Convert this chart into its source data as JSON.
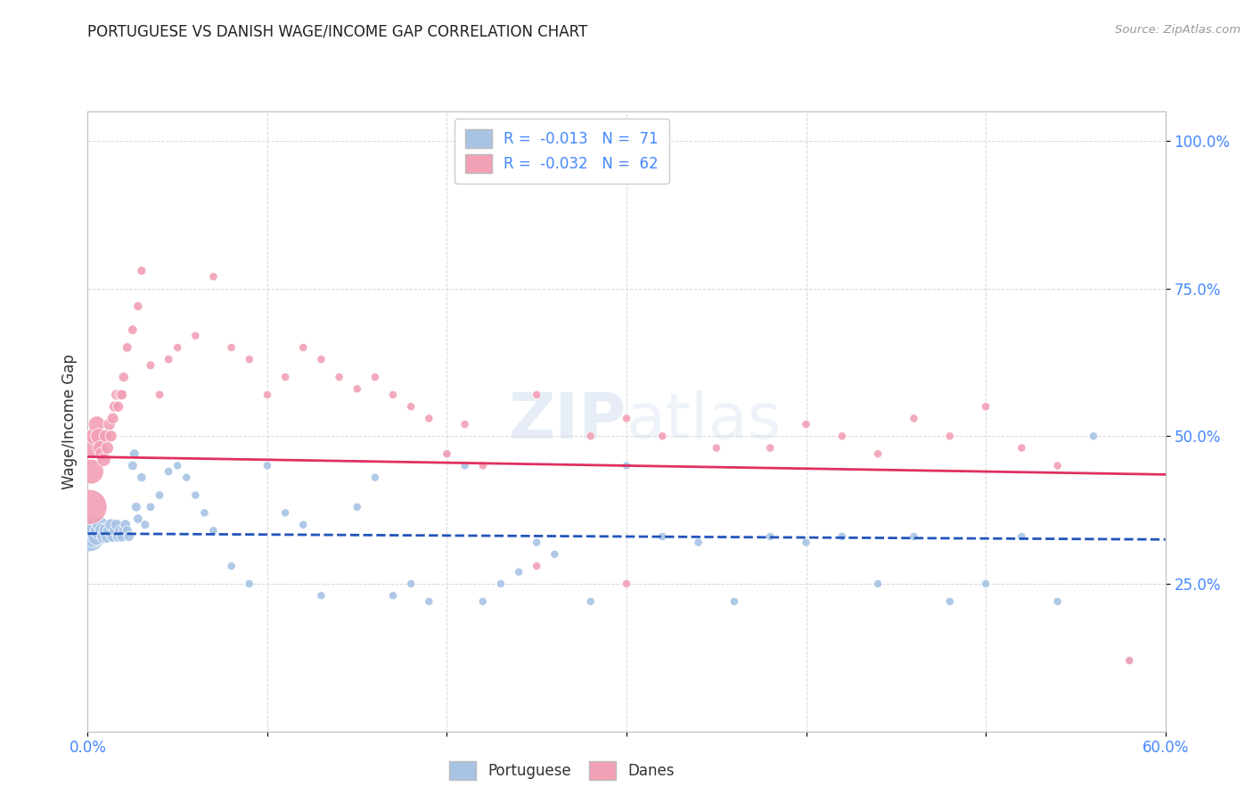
{
  "title": "PORTUGUESE VS DANISH WAGE/INCOME GAP CORRELATION CHART",
  "source": "Source: ZipAtlas.com",
  "ylabel": "Wage/Income Gap",
  "yticks": [
    "100.0%",
    "75.0%",
    "50.0%",
    "25.0%"
  ],
  "ytick_vals": [
    1.0,
    0.75,
    0.5,
    0.25
  ],
  "xlim": [
    0.0,
    0.6
  ],
  "ylim": [
    0.0,
    1.05
  ],
  "watermark": "ZIPatlas",
  "blue_color": "#A8C4E5",
  "pink_color": "#F2A0B5",
  "blue_line_color": "#2255BB",
  "pink_line_color": "#E03060",
  "tick_color": "#4488FF",
  "label_color": "#333333",
  "background": "#FFFFFF",
  "grid_color": "#CCCCCC",
  "portuguese_x": [
    0.001,
    0.002,
    0.003,
    0.004,
    0.005,
    0.006,
    0.007,
    0.008,
    0.009,
    0.01,
    0.011,
    0.012,
    0.013,
    0.014,
    0.015,
    0.016,
    0.017,
    0.018,
    0.019,
    0.02,
    0.021,
    0.022,
    0.023,
    0.025,
    0.026,
    0.027,
    0.028,
    0.03,
    0.032,
    0.035,
    0.04,
    0.045,
    0.05,
    0.055,
    0.06,
    0.065,
    0.07,
    0.08,
    0.09,
    0.1,
    0.11,
    0.12,
    0.13,
    0.15,
    0.16,
    0.17,
    0.18,
    0.19,
    0.2,
    0.21,
    0.22,
    0.23,
    0.24,
    0.25,
    0.26,
    0.28,
    0.3,
    0.32,
    0.34,
    0.36,
    0.38,
    0.4,
    0.42,
    0.44,
    0.46,
    0.48,
    0.5,
    0.52,
    0.54,
    0.56,
    0.58
  ],
  "portuguese_y": [
    0.33,
    0.34,
    0.33,
    0.34,
    0.33,
    0.34,
    0.35,
    0.34,
    0.33,
    0.34,
    0.33,
    0.34,
    0.35,
    0.33,
    0.34,
    0.35,
    0.33,
    0.34,
    0.33,
    0.34,
    0.35,
    0.34,
    0.33,
    0.45,
    0.47,
    0.38,
    0.36,
    0.43,
    0.35,
    0.38,
    0.4,
    0.44,
    0.45,
    0.43,
    0.4,
    0.37,
    0.34,
    0.28,
    0.25,
    0.45,
    0.37,
    0.35,
    0.23,
    0.38,
    0.43,
    0.23,
    0.25,
    0.22,
    0.47,
    0.45,
    0.22,
    0.25,
    0.27,
    0.32,
    0.3,
    0.22,
    0.45,
    0.33,
    0.32,
    0.22,
    0.33,
    0.32,
    0.33,
    0.25,
    0.33,
    0.22,
    0.25,
    0.33,
    0.22,
    0.5,
    0.12
  ],
  "portuguese_size": [
    600,
    400,
    300,
    250,
    200,
    180,
    160,
    140,
    130,
    120,
    110,
    100,
    95,
    90,
    85,
    80,
    80,
    75,
    75,
    70,
    70,
    65,
    65,
    60,
    60,
    60,
    58,
    55,
    52,
    50,
    48,
    48,
    45,
    45,
    45,
    45,
    45,
    45,
    45,
    45,
    45,
    45,
    45,
    45,
    45,
    45,
    45,
    45,
    45,
    45,
    45,
    45,
    45,
    45,
    45,
    45,
    45,
    45,
    45,
    45,
    45,
    45,
    45,
    45,
    45,
    45,
    45,
    45,
    45,
    45,
    45
  ],
  "danes_x": [
    0.001,
    0.002,
    0.003,
    0.004,
    0.005,
    0.006,
    0.007,
    0.008,
    0.009,
    0.01,
    0.011,
    0.012,
    0.013,
    0.014,
    0.015,
    0.016,
    0.017,
    0.018,
    0.019,
    0.02,
    0.022,
    0.025,
    0.028,
    0.03,
    0.035,
    0.04,
    0.045,
    0.05,
    0.06,
    0.07,
    0.08,
    0.09,
    0.1,
    0.11,
    0.12,
    0.13,
    0.14,
    0.15,
    0.16,
    0.17,
    0.18,
    0.19,
    0.2,
    0.21,
    0.22,
    0.25,
    0.28,
    0.3,
    0.32,
    0.35,
    0.38,
    0.4,
    0.42,
    0.44,
    0.46,
    0.48,
    0.5,
    0.52,
    0.54,
    0.58,
    0.25,
    0.3
  ],
  "danes_y": [
    0.38,
    0.44,
    0.48,
    0.5,
    0.52,
    0.5,
    0.48,
    0.47,
    0.46,
    0.5,
    0.48,
    0.52,
    0.5,
    0.53,
    0.55,
    0.57,
    0.55,
    0.57,
    0.57,
    0.6,
    0.65,
    0.68,
    0.72,
    0.78,
    0.62,
    0.57,
    0.63,
    0.65,
    0.67,
    0.77,
    0.65,
    0.63,
    0.57,
    0.6,
    0.65,
    0.63,
    0.6,
    0.58,
    0.6,
    0.57,
    0.55,
    0.53,
    0.47,
    0.52,
    0.45,
    0.57,
    0.5,
    0.53,
    0.5,
    0.48,
    0.48,
    0.52,
    0.5,
    0.47,
    0.53,
    0.5,
    0.55,
    0.48,
    0.45,
    0.12,
    0.28,
    0.25
  ],
  "danes_size": [
    800,
    400,
    250,
    200,
    180,
    160,
    140,
    130,
    120,
    110,
    100,
    95,
    90,
    85,
    80,
    75,
    75,
    70,
    70,
    65,
    60,
    58,
    55,
    52,
    50,
    48,
    48,
    45,
    45,
    45,
    45,
    45,
    45,
    45,
    45,
    45,
    45,
    45,
    45,
    45,
    45,
    45,
    45,
    45,
    45,
    45,
    45,
    45,
    45,
    45,
    45,
    45,
    45,
    45,
    45,
    45,
    45,
    45,
    45,
    45,
    45,
    45
  ],
  "port_trend_x": [
    0.0,
    0.6
  ],
  "port_trend_y": [
    0.335,
    0.325
  ],
  "danes_trend_x": [
    0.0,
    0.6
  ],
  "danes_trend_y": [
    0.465,
    0.435
  ]
}
